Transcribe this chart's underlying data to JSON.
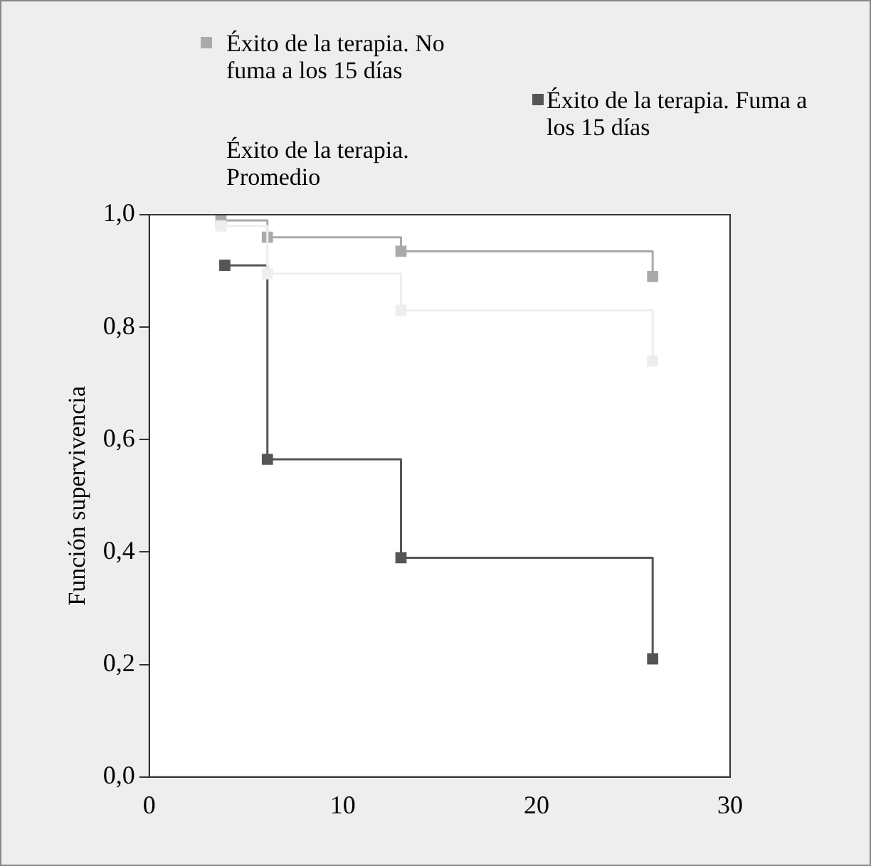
{
  "chart_data": {
    "type": "step",
    "ylabel": "Función supervivencia",
    "xlim": [
      0,
      30
    ],
    "xticks": [
      0,
      10,
      20,
      30
    ],
    "ylim": [
      0,
      1
    ],
    "yticks": [
      {
        "value": 0,
        "label": "0,0"
      },
      {
        "value": 0.2,
        "label": "0,2"
      },
      {
        "value": 0.4,
        "label": "0,4"
      },
      {
        "value": 0.6,
        "label": "0,6"
      },
      {
        "value": 0.8,
        "label": "0,8"
      },
      {
        "value": 1,
        "label": "1,0"
      }
    ],
    "grid": false,
    "legend": "top",
    "marker": "square",
    "line_style": "solid",
    "series": [
      {
        "name": "Éxito de la terapia. No fuma a los 15 días",
        "color": "#aaaaaa",
        "x": [
          3.7,
          6.1,
          13,
          26
        ],
        "values": [
          0.99,
          0.96,
          0.935,
          0.89
        ]
      },
      {
        "name": "Éxito de la terapia. Fuma a los 15 días",
        "color": "#555555",
        "x": [
          3.9,
          6.1,
          13,
          26
        ],
        "values": [
          0.91,
          0.565,
          0.39,
          0.21
        ]
      },
      {
        "name": "Éxito de la terapia. Promedio",
        "color": "#eeeeee",
        "x": [
          3.7,
          6.1,
          13,
          26
        ],
        "values": [
          0.98,
          0.895,
          0.83,
          0.74
        ]
      }
    ]
  }
}
